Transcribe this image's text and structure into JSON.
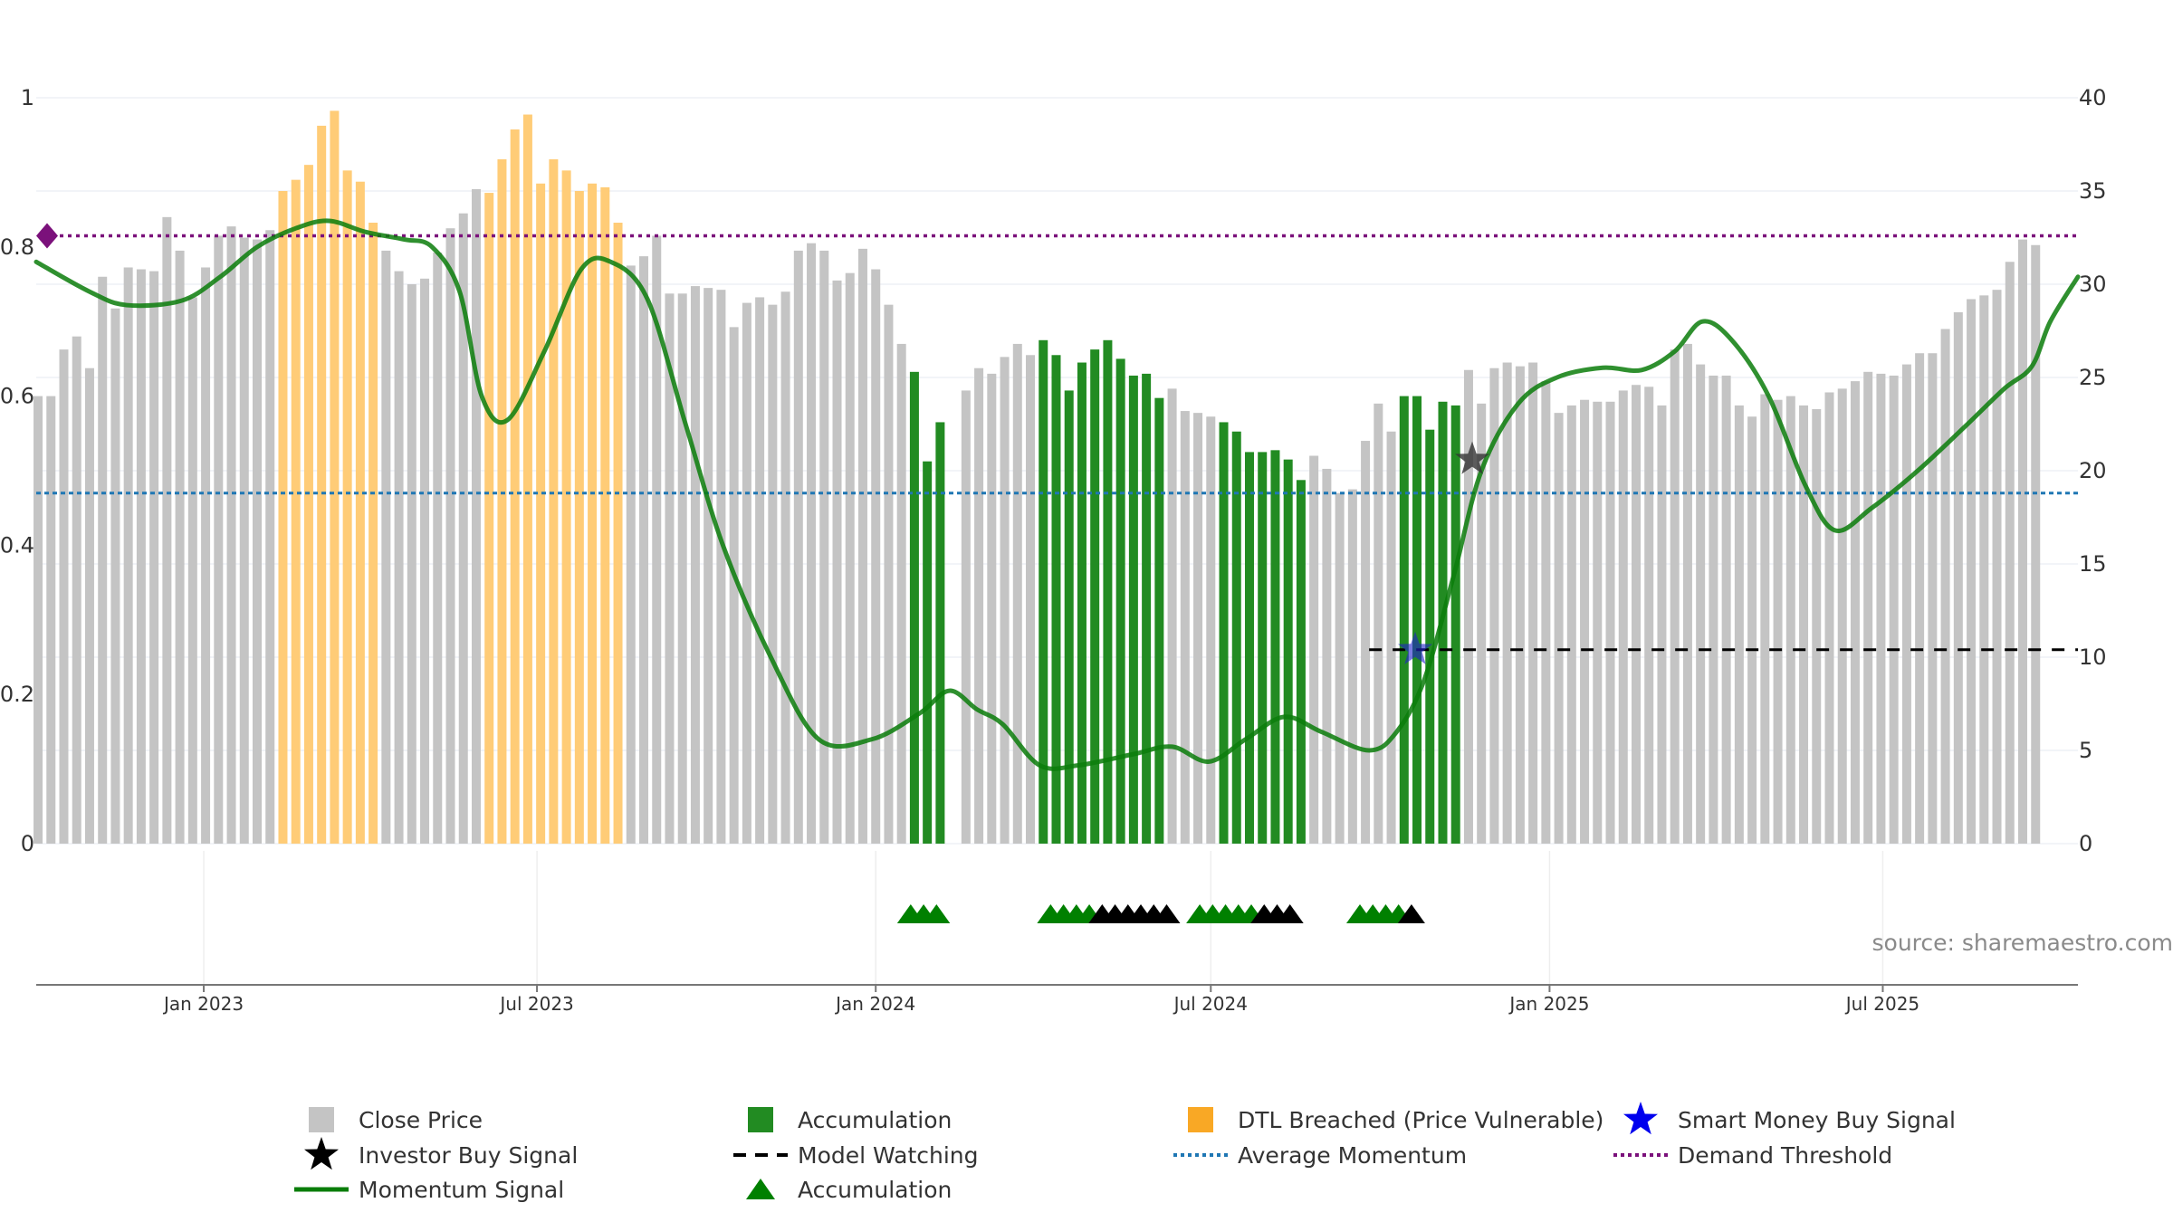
{
  "chart_data": {
    "type": "bar",
    "title": "",
    "left_axis": {
      "ticks": [
        "0",
        "0.2",
        "0.4",
        "0.6",
        "0.8",
        "1"
      ],
      "ylim": [
        0,
        1
      ]
    },
    "right_axis": {
      "ticks": [
        "0",
        "5",
        "10",
        "15",
        "20",
        "25",
        "30",
        "35",
        "40"
      ],
      "ylim": [
        0,
        40
      ]
    },
    "x_axis": {
      "start": "2022-10-02",
      "end": "2025-10-15",
      "ticks": [
        {
          "date": "2023-01-01",
          "label": "Jan 2023"
        },
        {
          "date": "2023-07-01",
          "label": "Jul 2023"
        },
        {
          "date": "2024-01-01",
          "label": "Jan 2024"
        },
        {
          "date": "2024-07-01",
          "label": "Jul 2024"
        },
        {
          "date": "2025-01-01",
          "label": "Jan 2025"
        },
        {
          "date": "2025-07-01",
          "label": "Jul 2025"
        }
      ]
    },
    "bar_start_date": "2022-10-03",
    "bar_interval_days": 7,
    "close_prices": [
      24,
      24,
      26.5,
      27.2,
      25.5,
      30.4,
      28.7,
      30.9,
      30.8,
      30.7,
      33.6,
      31.8,
      29.3,
      30.9,
      32.6,
      33.1,
      32.5,
      32.4,
      32.9,
      35,
      35.6,
      36.4,
      38.5,
      39.3,
      36.1,
      35.5,
      33.3,
      31.8,
      30.7,
      30,
      30.3,
      31.7,
      33,
      33.8,
      35.1,
      34.9,
      36.7,
      38.3,
      39.1,
      35.4,
      36.7,
      36.1,
      35,
      35.4,
      35.2,
      33.3,
      31,
      31.5,
      32.6,
      29.5,
      29.5,
      29.9,
      29.8,
      29.7,
      27.7,
      29,
      29.3,
      28.9,
      29.6,
      31.8,
      32.2,
      31.8,
      30.2,
      30.6,
      31.9,
      30.8,
      28.9,
      26.8,
      25.3,
      20.5,
      22.6,
      0,
      24.3,
      25.5,
      25.2,
      26.1,
      26.8,
      26.2,
      27,
      26.2,
      24.3,
      25.8,
      26.5,
      27,
      26,
      25.1,
      25.2,
      23.9,
      24.4,
      23.2,
      23.1,
      22.9,
      22.6,
      22.1,
      21,
      21,
      21.1,
      20.6,
      19.5,
      20.8,
      20.1,
      18.8,
      19,
      21.6,
      23.6,
      22.1,
      24,
      24,
      22.2,
      23.7,
      23.5,
      25.4,
      23.6,
      25.5,
      25.8,
      25.6,
      25.8,
      24.8,
      23.1,
      23.5,
      23.8,
      23.7,
      23.7,
      24.3,
      24.6,
      24.5,
      23.5,
      26.5,
      26.8,
      25.7,
      25.1,
      25.1,
      23.5,
      22.9,
      24.1,
      23.8,
      24,
      23.5,
      23.3,
      24.2,
      24.4,
      24.8,
      25.3,
      25.2,
      25.1,
      25.7,
      26.3,
      26.3,
      27.6,
      28.5,
      29.2,
      29.4,
      29.7,
      31.2,
      32.4,
      32.1
    ],
    "series": [
      {
        "name": "Close Price",
        "color": "#c4c4c4"
      },
      {
        "name": "Accumulation",
        "color": "#228b22",
        "bar_indices": [
          68,
          69,
          70,
          78,
          79,
          80,
          81,
          82,
          83,
          84,
          85,
          86,
          87,
          92,
          93,
          94,
          95,
          96,
          97,
          98,
          106,
          107,
          108,
          109,
          110
        ]
      },
      {
        "name": "DTL Breached (Price Vulnerable)",
        "color": "#ffcc77",
        "bar_indices": [
          19,
          20,
          21,
          22,
          23,
          24,
          25,
          26,
          35,
          36,
          37,
          38,
          39,
          40,
          41,
          42,
          43,
          44,
          45
        ]
      },
      {
        "name": "Smart Money Buy Signal",
        "color": "#2222cc",
        "points": [
          {
            "date": "2024-10-20",
            "value": 10.4
          }
        ]
      },
      {
        "name": "Investor Buy Signal",
        "color": "#333333",
        "points": [
          {
            "date": "2024-11-20",
            "value": 20.6
          }
        ]
      },
      {
        "name": "Model Watching",
        "color": "#000000",
        "start_date": "2024-09-25",
        "end_date": "2025-10-15",
        "value": 10.4
      },
      {
        "name": "Average Momentum",
        "color": "#1f77b4",
        "value": 0.47
      },
      {
        "name": "Demand Threshold",
        "color": "#7b117b",
        "value": 0.815
      },
      {
        "name": "Momentum Signal",
        "color": "#0a7d0a",
        "points": [
          [
            "2022-10-02",
            0.78
          ],
          [
            "2022-10-31",
            0.74
          ],
          [
            "2022-11-20",
            0.722
          ],
          [
            "2022-12-20",
            0.728
          ],
          [
            "2023-01-10",
            0.76
          ],
          [
            "2023-01-30",
            0.8
          ],
          [
            "2023-02-20",
            0.825
          ],
          [
            "2023-03-10",
            0.835
          ],
          [
            "2023-03-30",
            0.82
          ],
          [
            "2023-04-20",
            0.81
          ],
          [
            "2023-05-05",
            0.8
          ],
          [
            "2023-05-20",
            0.74
          ],
          [
            "2023-06-01",
            0.6
          ],
          [
            "2023-06-15",
            0.568
          ],
          [
            "2023-07-05",
            0.66
          ],
          [
            "2023-07-25",
            0.77
          ],
          [
            "2023-08-10",
            0.78
          ],
          [
            "2023-08-30",
            0.73
          ],
          [
            "2023-09-20",
            0.56
          ],
          [
            "2023-10-10",
            0.4
          ],
          [
            "2023-11-05",
            0.25
          ],
          [
            "2023-12-01",
            0.14
          ],
          [
            "2023-12-30",
            0.14
          ],
          [
            "2024-01-25",
            0.175
          ],
          [
            "2024-02-10",
            0.205
          ],
          [
            "2024-02-25",
            0.18
          ],
          [
            "2024-03-10",
            0.16
          ],
          [
            "2024-03-30",
            0.105
          ],
          [
            "2024-04-20",
            0.105
          ],
          [
            "2024-05-20",
            0.12
          ],
          [
            "2024-06-10",
            0.13
          ],
          [
            "2024-06-30",
            0.11
          ],
          [
            "2024-07-20",
            0.14
          ],
          [
            "2024-08-10",
            0.17
          ],
          [
            "2024-08-30",
            0.15
          ],
          [
            "2024-09-25",
            0.125
          ],
          [
            "2024-10-10",
            0.15
          ],
          [
            "2024-10-25",
            0.22
          ],
          [
            "2024-11-10",
            0.36
          ],
          [
            "2024-11-25",
            0.5
          ],
          [
            "2024-12-15",
            0.59
          ],
          [
            "2025-01-05",
            0.625
          ],
          [
            "2025-01-30",
            0.638
          ],
          [
            "2025-02-20",
            0.635
          ],
          [
            "2025-03-10",
            0.66
          ],
          [
            "2025-03-25",
            0.7
          ],
          [
            "2025-04-10",
            0.675
          ],
          [
            "2025-04-30",
            0.6
          ],
          [
            "2025-05-20",
            0.48
          ],
          [
            "2025-06-05",
            0.42
          ],
          [
            "2025-06-25",
            0.45
          ],
          [
            "2025-07-20",
            0.5
          ],
          [
            "2025-08-15",
            0.56
          ],
          [
            "2025-09-05",
            0.61
          ],
          [
            "2025-09-20",
            0.64
          ],
          [
            "2025-09-30",
            0.7
          ],
          [
            "2025-10-15",
            0.76
          ]
        ]
      },
      {
        "name": "Accumulation",
        "color": "#008000",
        "marker": "triangle",
        "points": [
          {
            "date": "2024-01-20",
            "color": "#008000"
          },
          {
            "date": "2024-01-27",
            "color": "#008000"
          },
          {
            "date": "2024-02-03",
            "color": "#008000"
          },
          {
            "date": "2024-04-05",
            "color": "#008000"
          },
          {
            "date": "2024-04-12",
            "color": "#008000"
          },
          {
            "date": "2024-04-19",
            "color": "#008000"
          },
          {
            "date": "2024-04-26",
            "color": "#008000"
          },
          {
            "date": "2024-05-03",
            "color": "#000000"
          },
          {
            "date": "2024-05-10",
            "color": "#000000"
          },
          {
            "date": "2024-05-17",
            "color": "#000000"
          },
          {
            "date": "2024-05-24",
            "color": "#000000"
          },
          {
            "date": "2024-05-31",
            "color": "#000000"
          },
          {
            "date": "2024-06-07",
            "color": "#000000"
          },
          {
            "date": "2024-06-25",
            "color": "#008000"
          },
          {
            "date": "2024-07-02",
            "color": "#008000"
          },
          {
            "date": "2024-07-09",
            "color": "#008000"
          },
          {
            "date": "2024-07-16",
            "color": "#008000"
          },
          {
            "date": "2024-07-23",
            "color": "#008000"
          },
          {
            "date": "2024-07-30",
            "color": "#000000"
          },
          {
            "date": "2024-08-06",
            "color": "#000000"
          },
          {
            "date": "2024-08-13",
            "color": "#000000"
          },
          {
            "date": "2024-09-20",
            "color": "#008000"
          },
          {
            "date": "2024-09-27",
            "color": "#008000"
          },
          {
            "date": "2024-10-04",
            "color": "#008000"
          },
          {
            "date": "2024-10-11",
            "color": "#008000"
          },
          {
            "date": "2024-10-18",
            "color": "#000000"
          }
        ]
      }
    ],
    "legend_position": "bottom",
    "legend": [
      {
        "label": "Close Price",
        "symbol": "square",
        "color": "#c4c4c4"
      },
      {
        "label": "Accumulation",
        "symbol": "square",
        "color": "#228b22"
      },
      {
        "label": "DTL Breached (Price Vulnerable)",
        "symbol": "square",
        "color": "#f9a825"
      },
      {
        "label": "Smart Money Buy Signal",
        "symbol": "star",
        "color": "#0000ee"
      },
      {
        "label": "Investor Buy Signal",
        "symbol": "star",
        "color": "#000000"
      },
      {
        "label": "Model Watching",
        "symbol": "dash",
        "color": "#000000"
      },
      {
        "label": "Average Momentum",
        "symbol": "dotted",
        "color": "#1f77b4"
      },
      {
        "label": "Demand Threshold",
        "symbol": "dotted",
        "color": "#7b117b"
      },
      {
        "label": "Momentum Signal",
        "symbol": "line",
        "color": "#0a7d0a"
      },
      {
        "label": "Accumulation",
        "symbol": "triangle",
        "color": "#008000"
      }
    ],
    "source_note": "source: sharemaestro.com"
  }
}
